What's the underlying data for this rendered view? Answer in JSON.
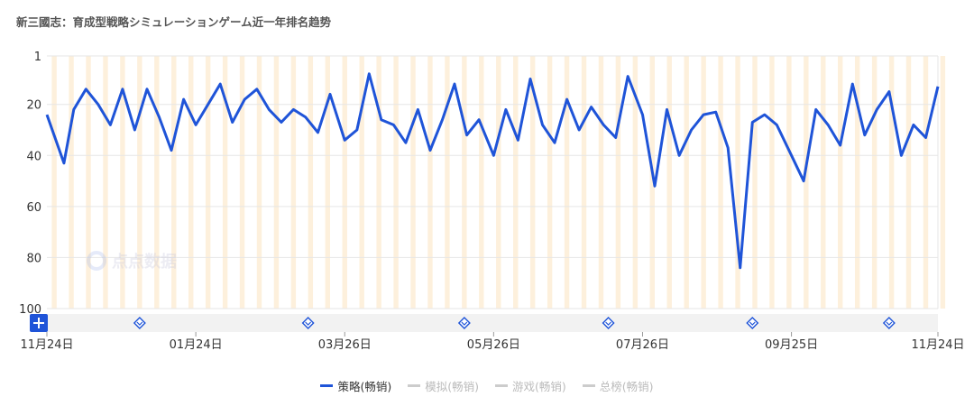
{
  "colors": {
    "line": "#1f54d8",
    "band": "#fdf0dc",
    "grid": "#e6e6e6",
    "inactive": "#c8c8c8"
  },
  "watermark_text": "点点数据",
  "chart_data": {
    "type": "line",
    "title": "新三國志：育成型戦略シミュレーションゲーム近一年排名趋势",
    "y_inverted": true,
    "ylim": [
      1,
      100
    ],
    "y_ticks": [
      "1",
      "20",
      "40",
      "60",
      "80",
      "100"
    ],
    "x_range": [
      "2022-11-24",
      "2023-11-24"
    ],
    "x_ticks": [
      "11月24日",
      "01月24日",
      "03月26日",
      "05月26日",
      "07月26日",
      "09月25日",
      "11月24日"
    ],
    "legend": [
      {
        "name": "策略(畅销)",
        "active": true
      },
      {
        "name": "模拟(畅销)",
        "active": false
      },
      {
        "name": "游戏(畅销)",
        "active": false
      },
      {
        "name": "总榜(畅销)",
        "active": false
      }
    ],
    "series": [
      {
        "name": "策略(畅销)",
        "x": [
          "2022-11-24",
          "2022-12-01",
          "2022-12-05",
          "2022-12-10",
          "2022-12-15",
          "2022-12-20",
          "2022-12-25",
          "2022-12-30",
          "2023-01-04",
          "2023-01-09",
          "2023-01-14",
          "2023-01-19",
          "2023-01-24",
          "2023-01-29",
          "2023-02-03",
          "2023-02-08",
          "2023-02-13",
          "2023-02-18",
          "2023-02-23",
          "2023-02-28",
          "2023-03-05",
          "2023-03-10",
          "2023-03-15",
          "2023-03-20",
          "2023-03-26",
          "2023-03-31",
          "2023-04-05",
          "2023-04-10",
          "2023-04-15",
          "2023-04-20",
          "2023-04-25",
          "2023-04-30",
          "2023-05-05",
          "2023-05-10",
          "2023-05-15",
          "2023-05-20",
          "2023-05-26",
          "2023-05-31",
          "2023-06-05",
          "2023-06-10",
          "2023-06-15",
          "2023-06-20",
          "2023-06-25",
          "2023-06-30",
          "2023-07-05",
          "2023-07-10",
          "2023-07-15",
          "2023-07-20",
          "2023-07-26",
          "2023-07-31",
          "2023-08-05",
          "2023-08-10",
          "2023-08-15",
          "2023-08-20",
          "2023-08-25",
          "2023-08-30",
          "2023-09-04",
          "2023-09-09",
          "2023-09-14",
          "2023-09-19",
          "2023-09-25",
          "2023-09-30",
          "2023-10-05",
          "2023-10-10",
          "2023-10-15",
          "2023-10-20",
          "2023-10-25",
          "2023-10-30",
          "2023-11-04",
          "2023-11-09",
          "2023-11-14",
          "2023-11-19",
          "2023-11-24"
        ],
        "values": [
          24,
          43,
          22,
          14,
          20,
          28,
          14,
          30,
          14,
          25,
          38,
          18,
          28,
          20,
          12,
          27,
          18,
          14,
          22,
          27,
          22,
          25,
          31,
          16,
          34,
          30,
          8,
          26,
          28,
          35,
          22,
          38,
          26,
          12,
          32,
          26,
          40,
          22,
          34,
          10,
          28,
          35,
          18,
          30,
          21,
          28,
          33,
          9,
          24,
          52,
          22,
          40,
          30,
          24,
          23,
          37,
          84,
          27,
          24,
          28,
          40,
          50,
          22,
          28,
          36,
          12,
          32,
          22,
          15,
          40,
          28,
          33,
          13
        ]
      }
    ]
  }
}
